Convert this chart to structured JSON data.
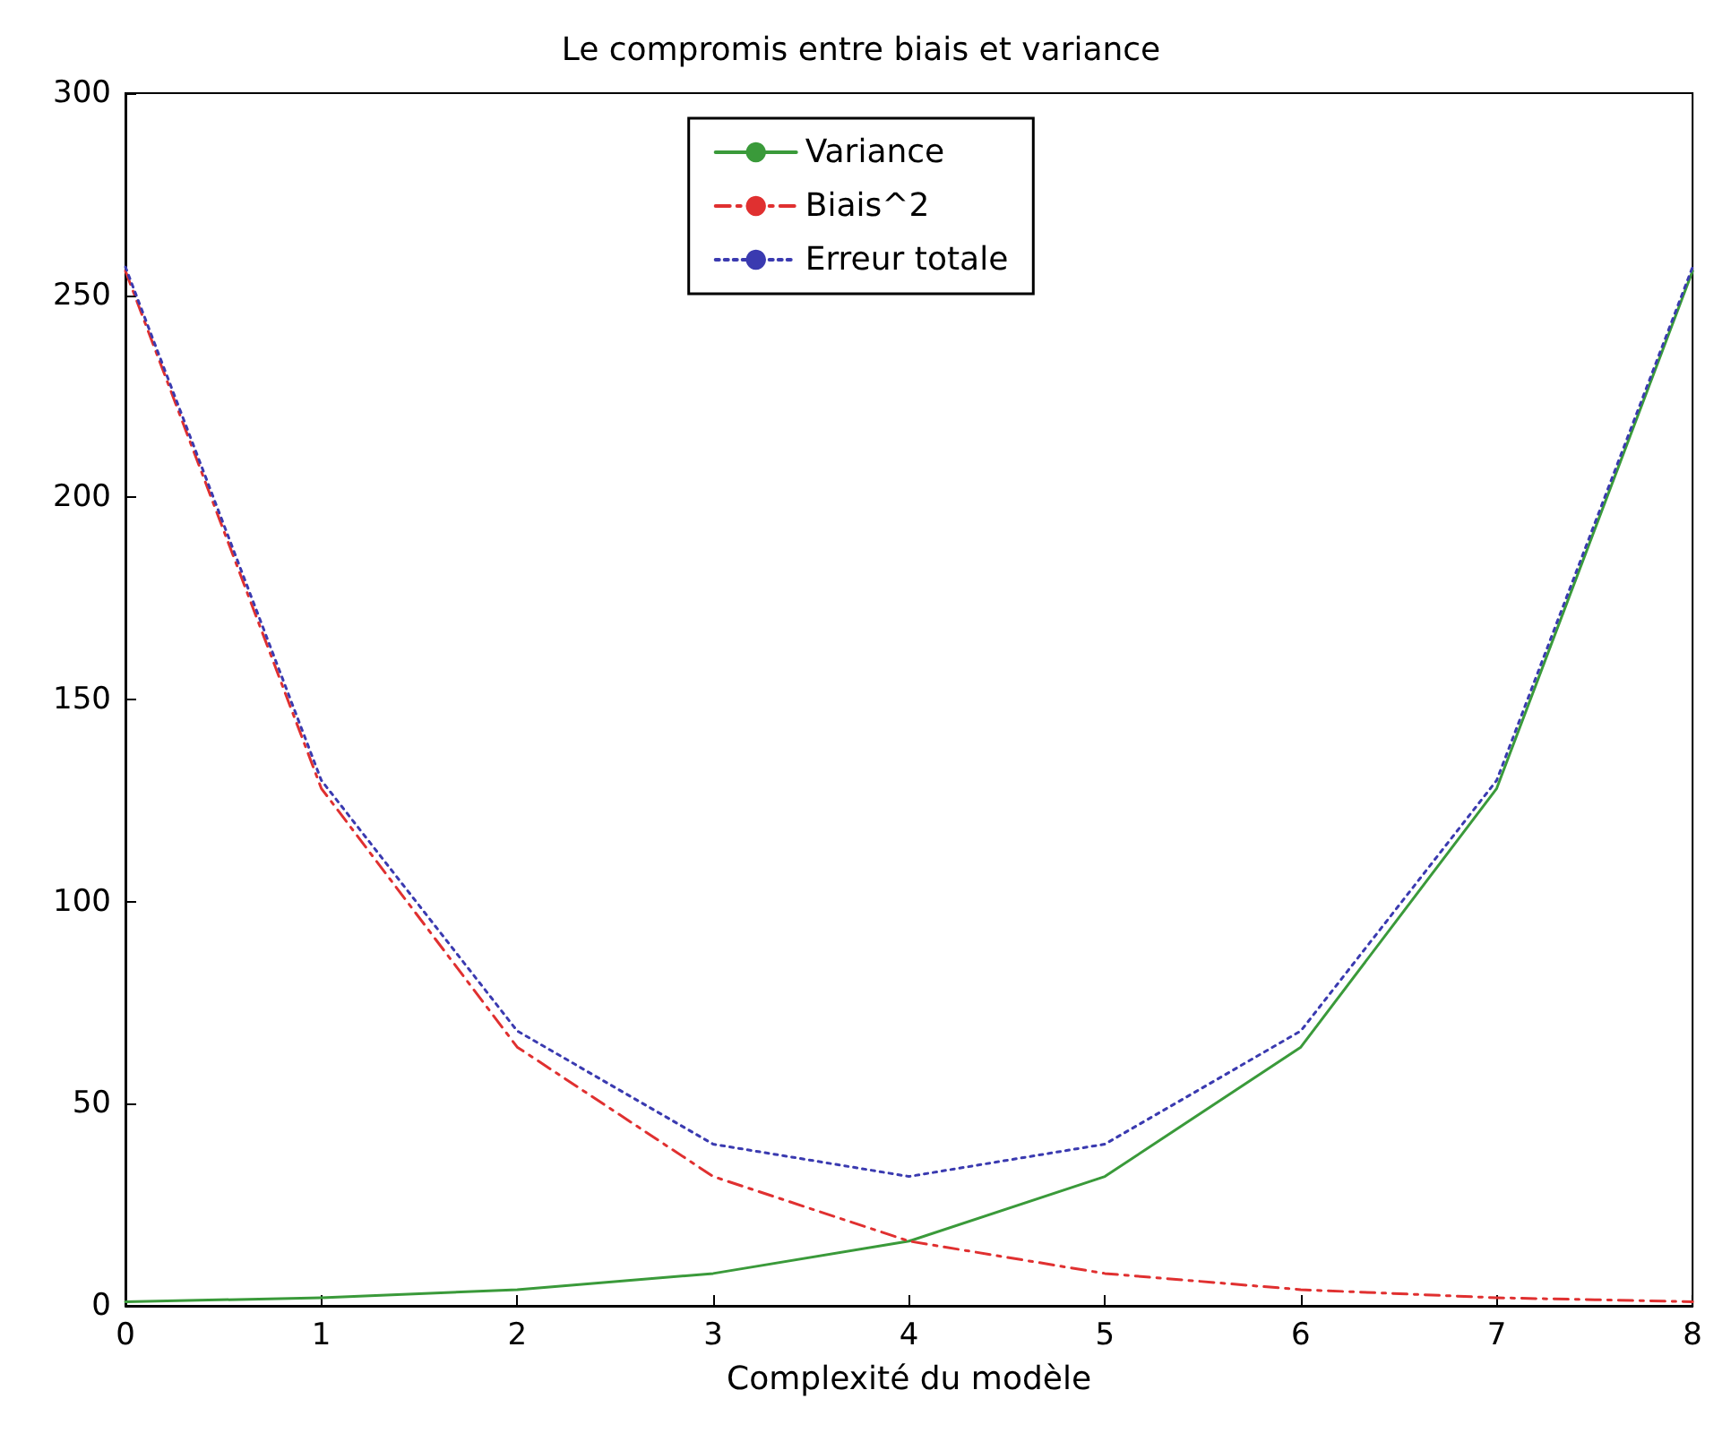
{
  "chart_data": {
    "type": "line",
    "title": "Le compromis entre biais et variance",
    "xlabel": "Complexité du modèle",
    "x": [
      0,
      1,
      2,
      3,
      4,
      5,
      6,
      7,
      8
    ],
    "series": [
      {
        "name": "Variance",
        "color": "#3a9a3a",
        "line_style": "solid",
        "values": [
          1,
          2,
          4,
          8,
          16,
          32,
          64,
          128,
          256
        ]
      },
      {
        "name": "Biais^2",
        "color": "#e03030",
        "line_style": "dashdot",
        "values": [
          256,
          128,
          64,
          32,
          16,
          8,
          4,
          2,
          1
        ]
      },
      {
        "name": "Erreur totale",
        "color": "#3a3ab0",
        "line_style": "dotted",
        "values": [
          257,
          130,
          68,
          40,
          32,
          40,
          68,
          130,
          257
        ]
      }
    ],
    "xlim": [
      0,
      8
    ],
    "xticks": [
      0,
      1,
      2,
      3,
      4,
      5,
      6,
      7,
      8
    ],
    "ylim": [
      0,
      300
    ],
    "yticks": [
      0,
      50,
      100,
      150,
      200,
      250,
      300
    ],
    "legend": "top",
    "grid": false,
    "marker": "none"
  }
}
